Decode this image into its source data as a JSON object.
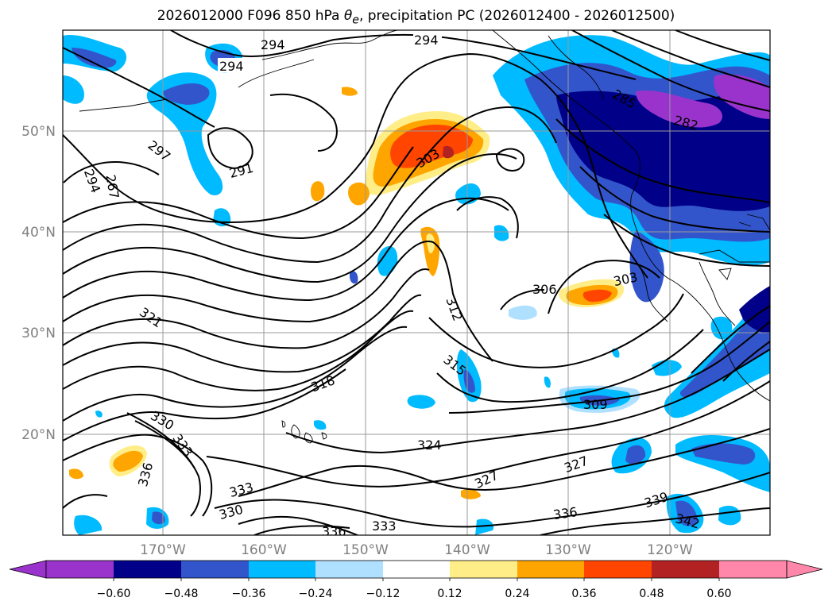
{
  "title": {
    "prefix": "2026012000 F096 850 hPa ",
    "symbol": "θ",
    "subscript": "e",
    "suffix": ", precipitation PC (2026012400 - 2026012500)"
  },
  "map": {
    "lat_labels": [
      "50°N",
      "40°N",
      "30°N",
      "20°N"
    ],
    "lon_labels": [
      "170°W",
      "160°W",
      "150°W",
      "140°W",
      "130°W",
      "120°W"
    ],
    "contour_labels": [
      "294",
      "294",
      "294",
      "297",
      "267",
      "294",
      "291",
      "303",
      "291",
      "285",
      "282",
      "306",
      "303",
      "312",
      "321",
      "318",
      "315",
      "309",
      "330",
      "333",
      "336",
      "324",
      "327",
      "327",
      "339",
      "333",
      "330",
      "336",
      "336",
      "333",
      "342"
    ]
  },
  "colorbar": {
    "colors": [
      "#9933cc",
      "#000088",
      "#3355cc",
      "#00bbff",
      "#b0e0ff",
      "#ffffff",
      "#ffee88",
      "#ffa500",
      "#ff4500",
      "#b22222",
      "#ff88aa"
    ],
    "tick_labels": [
      "−0.60",
      "−0.48",
      "−0.36",
      "−0.24",
      "−0.12",
      "0.12",
      "0.24",
      "0.36",
      "0.48",
      "0.60"
    ]
  },
  "colors": {
    "negative_strong": "#000088",
    "negative_mid": "#3355cc",
    "negative_weak": "#00bbff",
    "positive_weak": "#ffee88",
    "positive_mid": "#ffa500",
    "positive_strong": "#ff4500",
    "contour": "#000000",
    "gridline": "#999999"
  }
}
